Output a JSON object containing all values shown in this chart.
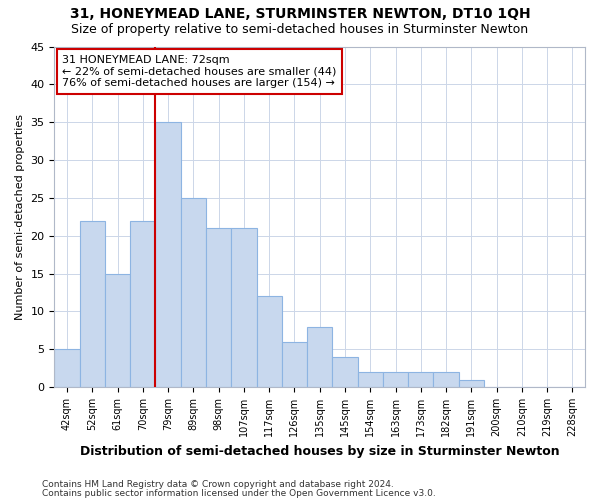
{
  "title": "31, HONEYMEAD LANE, STURMINSTER NEWTON, DT10 1QH",
  "subtitle": "Size of property relative to semi-detached houses in Sturminster Newton",
  "xlabel": "Distribution of semi-detached houses by size in Sturminster Newton",
  "ylabel": "Number of semi-detached properties",
  "footnote1": "Contains HM Land Registry data © Crown copyright and database right 2024.",
  "footnote2": "Contains public sector information licensed under the Open Government Licence v3.0.",
  "bin_labels": [
    "42sqm",
    "52sqm",
    "61sqm",
    "70sqm",
    "79sqm",
    "89sqm",
    "98sqm",
    "107sqm",
    "117sqm",
    "126sqm",
    "135sqm",
    "145sqm",
    "154sqm",
    "163sqm",
    "173sqm",
    "182sqm",
    "191sqm",
    "200sqm",
    "210sqm",
    "219sqm",
    "228sqm"
  ],
  "bar_values": [
    5,
    22,
    15,
    22,
    35,
    25,
    21,
    21,
    12,
    6,
    8,
    4,
    2,
    2,
    2,
    2,
    1,
    0,
    0,
    0,
    0
  ],
  "bar_color": "#c8d8ee",
  "bar_edgecolor": "#8db4e2",
  "grid_color": "#ccd6e8",
  "property_label": "31 HONEYMEAD LANE: 72sqm",
  "pct_smaller": 22,
  "count_smaller": 44,
  "pct_larger": 76,
  "count_larger": 154,
  "vline_color": "#cc0000",
  "annotation_box_edgecolor": "#cc0000",
  "title_fontsize": 10,
  "subtitle_fontsize": 9,
  "ann_fontsize": 8,
  "xlabel_fontsize": 9,
  "ylabel_fontsize": 8,
  "footnote_fontsize": 6.5,
  "ylim": [
    0,
    45
  ],
  "yticks": [
    0,
    5,
    10,
    15,
    20,
    25,
    30,
    35,
    40,
    45
  ],
  "vline_bin_index": 3
}
